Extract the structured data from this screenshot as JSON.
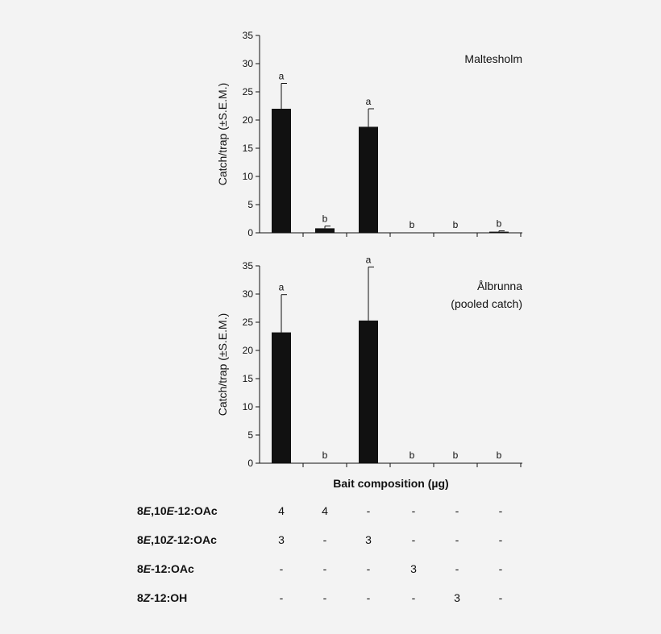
{
  "background": "#f3f3f3",
  "bar_color": "#111111",
  "chart_data": [
    {
      "type": "bar",
      "annotation": "Maltesholm",
      "annotation_line2": "",
      "ylabel": "Catch/trap (±S.E.M.)",
      "ylim": [
        0,
        35
      ],
      "yticks": [
        "0",
        "5",
        "10",
        "15",
        "20",
        "25",
        "30",
        "35"
      ],
      "values": [
        22,
        0.8,
        18.8,
        0,
        0,
        0.2
      ],
      "errors": [
        4.5,
        0.4,
        3.2,
        0,
        0,
        0.15
      ],
      "letters": [
        "a",
        "b",
        "a",
        "b",
        "b",
        "b"
      ]
    },
    {
      "type": "bar",
      "annotation": "Ålbrunna",
      "annotation_line2": "(pooled catch)",
      "ylabel": "Catch/trap (±S.E.M.)",
      "ylim": [
        0,
        35
      ],
      "yticks": [
        "0",
        "5",
        "10",
        "15",
        "20",
        "25",
        "30",
        "35"
      ],
      "values": [
        23.2,
        0,
        25.3,
        0,
        0,
        0
      ],
      "errors": [
        6.7,
        0,
        9.5,
        0,
        0,
        0
      ],
      "letters": [
        "a",
        "b",
        "a",
        "b",
        "b",
        "b"
      ]
    }
  ],
  "xlabel": "Bait composition (µg)",
  "table": {
    "rows": [
      {
        "label_parts": [
          "8",
          "E",
          ",10",
          "E",
          "-12:OAc"
        ],
        "values": [
          "4",
          "4",
          "-",
          "-",
          "-",
          "-"
        ]
      },
      {
        "label_parts": [
          "8",
          "E",
          ",10",
          "Z",
          "-12:OAc"
        ],
        "values": [
          "3",
          "-",
          "3",
          "-",
          "-",
          "-"
        ]
      },
      {
        "label_parts": [
          "8",
          "E",
          "-12:OAc"
        ],
        "values": [
          "-",
          "-",
          "-",
          "3",
          "-",
          "-"
        ]
      },
      {
        "label_parts": [
          "8",
          "Z",
          "-12:OH"
        ],
        "values": [
          "-",
          "-",
          "-",
          "-",
          "3",
          "-"
        ]
      }
    ]
  }
}
